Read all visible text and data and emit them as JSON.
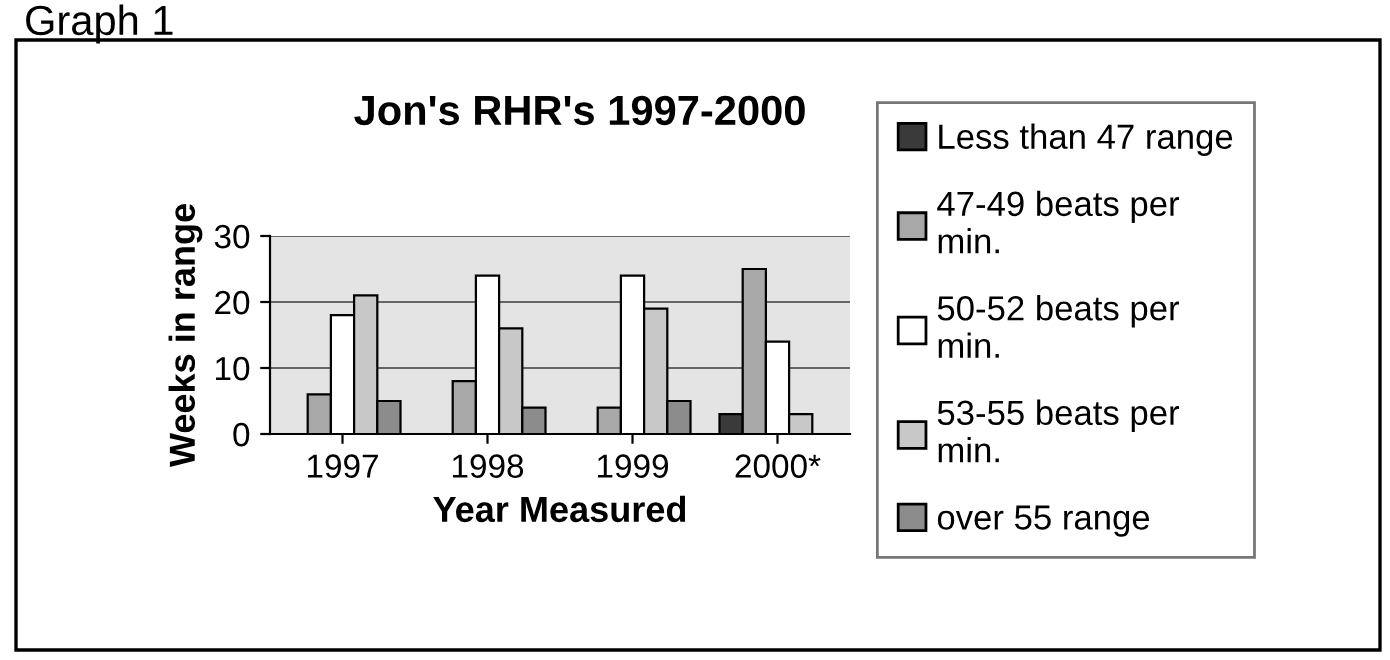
{
  "chart_data": {
    "type": "bar",
    "title": "Jon's RHR's 1997-2000",
    "xlabel": "Year Measured",
    "ylabel": "Weeks in range",
    "categories": [
      "1997",
      "1998",
      "1999",
      "2000*"
    ],
    "series": [
      {
        "name": "Less than 47 range",
        "color": "#3a3a3a",
        "values": [
          null,
          null,
          null,
          3
        ]
      },
      {
        "name": "47-49 beats per min.",
        "color": "#a8a8a8",
        "values": [
          6,
          8,
          4,
          25
        ]
      },
      {
        "name": "50-52 beats per min.",
        "color": "#ffffff",
        "values": [
          18,
          24,
          24,
          14
        ]
      },
      {
        "name": "53-55 beats per min.",
        "color": "#c8c8c8",
        "values": [
          21,
          16,
          19,
          3
        ]
      },
      {
        "name": "over 55 range",
        "color": "#8c8c8c",
        "values": [
          5,
          4,
          5,
          null
        ]
      }
    ],
    "ylim": [
      0,
      30
    ],
    "yticks": [
      0,
      10,
      20,
      30
    ],
    "grid": "y",
    "legend": "right",
    "annotations": [
      "Graph 1"
    ]
  }
}
